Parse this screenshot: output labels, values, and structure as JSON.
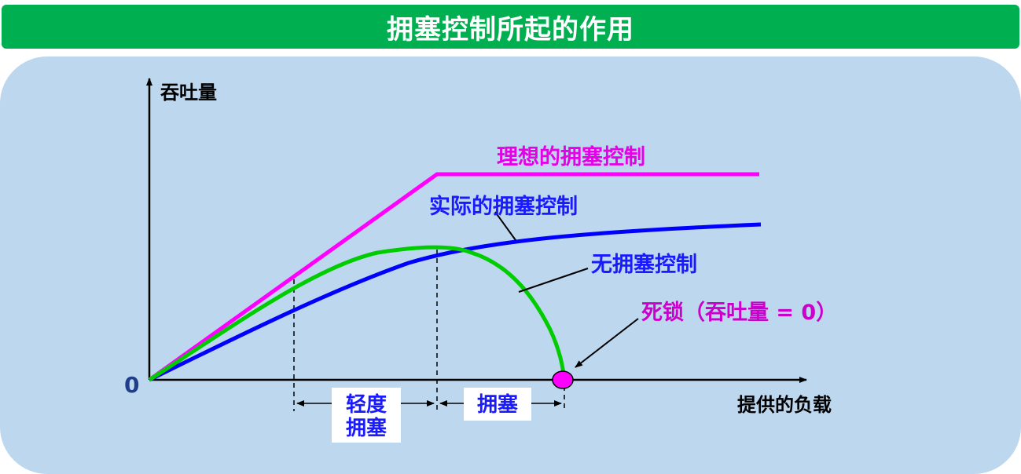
{
  "title": "拥塞控制所起的作用",
  "axes": {
    "y_label": "吞吐量",
    "x_label": "提供的负载",
    "origin": "0"
  },
  "curves": {
    "ideal": "理想的拥塞控制",
    "actual": "实际的拥塞控制",
    "none": "无拥塞控制"
  },
  "deadlock": "死锁（吞吐量 = 0）",
  "regions": {
    "light_line1": "轻度",
    "light_line2": "拥塞",
    "congestion": "拥塞"
  },
  "colors": {
    "title_bg": "#00b050",
    "panel_bg": "#bdd7ee",
    "ideal": "#ff00ff",
    "actual": "#0000ff",
    "none": "#00cc00",
    "deadlock_text": "#cc00cc",
    "label_blue": "#1a1aff"
  }
}
